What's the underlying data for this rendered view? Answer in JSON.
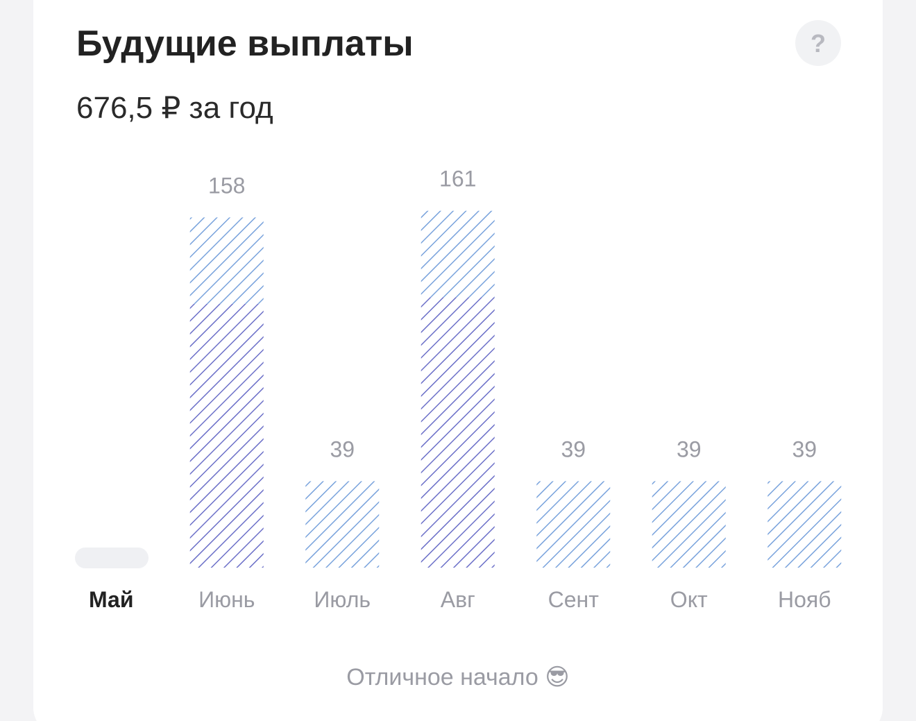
{
  "header": {
    "title": "Будущие выплаты",
    "subtitle": "676,5 ₽ за год",
    "help": "?"
  },
  "chart_data": {
    "type": "bar",
    "stacked": true,
    "categories": [
      "Май",
      "Июнь",
      "Июль",
      "Авг",
      "Сент",
      "Окт",
      "Нояб"
    ],
    "series": [
      {
        "color": "#6b6fc8",
        "values": [
          null,
          119,
          null,
          122,
          null,
          null,
          null
        ]
      },
      {
        "color": "#78a2dc",
        "values": [
          null,
          39,
          39,
          39,
          39,
          39,
          39
        ]
      }
    ],
    "totals": [
      null,
      158,
      39,
      161,
      39,
      39,
      39
    ],
    "ylim": [
      0,
      170
    ]
  },
  "footer": {
    "text": "Отличное начало 😎"
  }
}
